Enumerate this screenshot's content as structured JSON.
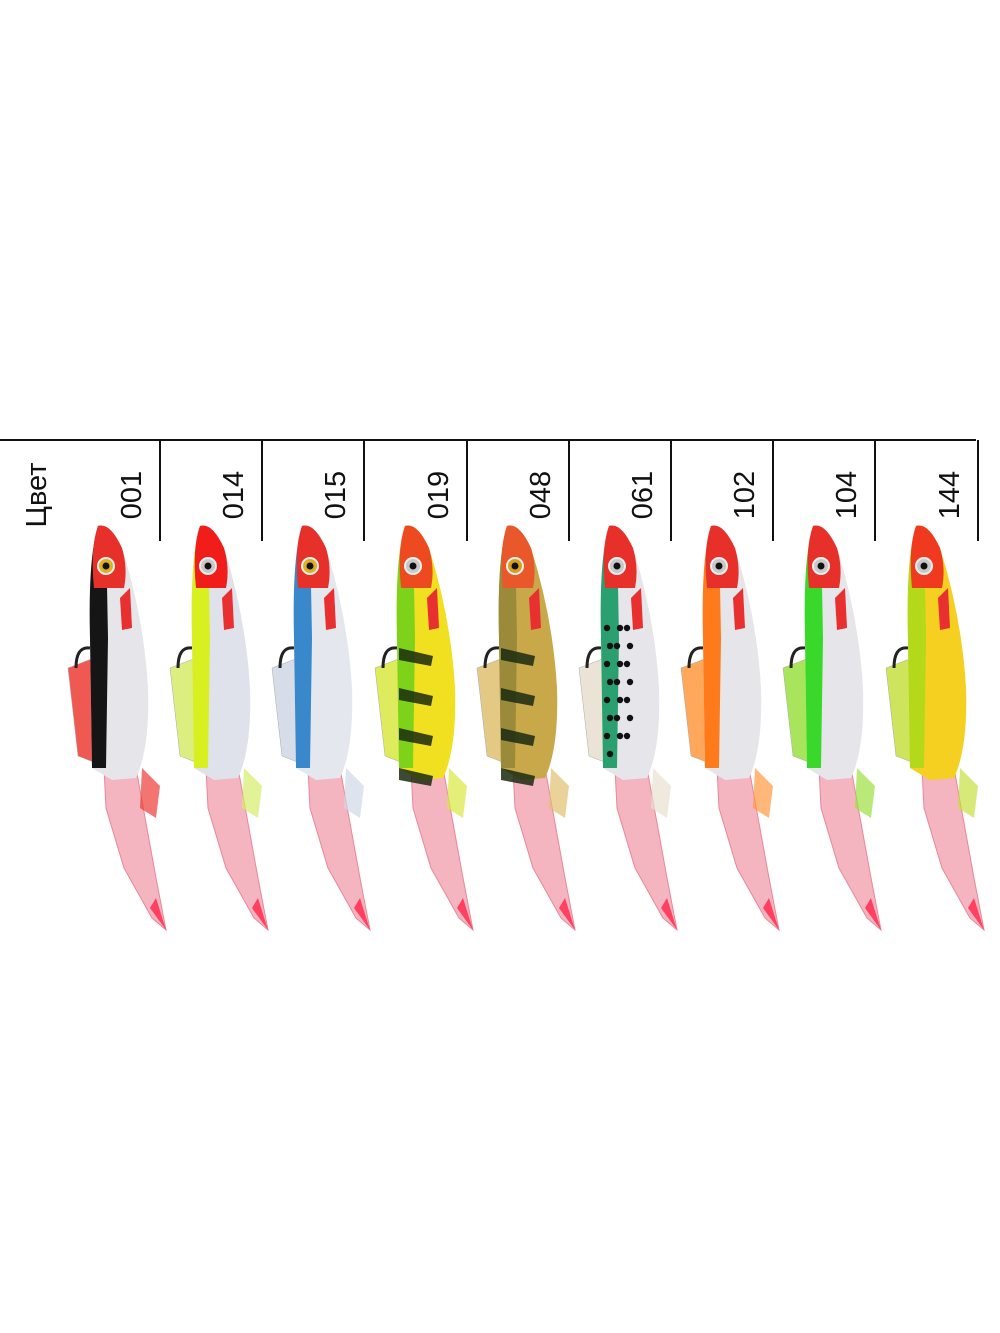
{
  "header_label": "Цвет",
  "colors": [
    {
      "code": "001",
      "head": "#e8302a",
      "back": "#151515",
      "belly": "#e6e6ea",
      "fin": "#ee3b35",
      "eye": "#e0b020",
      "pattern": "none"
    },
    {
      "code": "014",
      "head": "#f01d1a",
      "back": "#d8f020",
      "belly": "#dfe2ea",
      "fin": "#d6ec6a",
      "eye": "#c8c8c8",
      "pattern": "none"
    },
    {
      "code": "015",
      "head": "#e8302a",
      "back": "#3a88cc",
      "belly": "#e4e8ee",
      "fin": "#cfd8e6",
      "eye": "#e0b020",
      "pattern": "none"
    },
    {
      "code": "019",
      "head": "#ee4a20",
      "back": "#7ed21a",
      "belly": "#f0e020",
      "fin": "#d8e840",
      "eye": "#c8c8c8",
      "pattern": "bars"
    },
    {
      "code": "048",
      "head": "#e8582a",
      "back": "#9a8a3a",
      "belly": "#c9a84a",
      "fin": "#e0c070",
      "eye": "#d8a020",
      "pattern": "bars"
    },
    {
      "code": "061",
      "head": "#e8302a",
      "back": "#2aa070",
      "belly": "#e6e6ea",
      "fin": "#e8e0d0",
      "eye": "#c8c8c8",
      "pattern": "spots"
    },
    {
      "code": "102",
      "head": "#e8302a",
      "back": "#ff7a1a",
      "belly": "#e6e6ea",
      "fin": "#ff9a40",
      "eye": "#c8c8c8",
      "pattern": "none"
    },
    {
      "code": "104",
      "head": "#e8302a",
      "back": "#3ad82a",
      "belly": "#e6e6ea",
      "fin": "#9ae040",
      "eye": "#c8c8c8",
      "pattern": "none"
    },
    {
      "code": "144",
      "head": "#f03a20",
      "back": "#b4d81a",
      "belly": "#f6d020",
      "fin": "#c6e040",
      "eye": "#c8c8c8",
      "pattern": "none"
    }
  ],
  "tail_color": "#f4b4c0"
}
